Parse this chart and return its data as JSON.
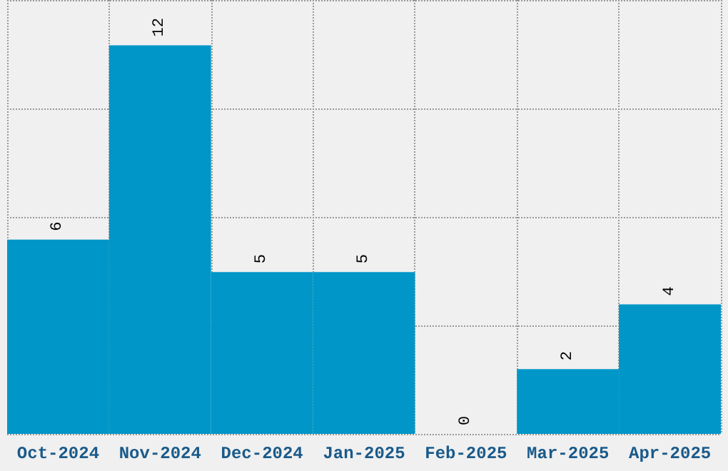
{
  "chart_data": {
    "type": "bar",
    "categories": [
      "Oct-2024",
      "Nov-2024",
      "Dec-2024",
      "Jan-2025",
      "Feb-2025",
      "Mar-2025",
      "Apr-2025"
    ],
    "values": [
      6,
      12,
      5,
      5,
      0,
      2,
      4
    ],
    "color": "#0096c8",
    "data_labels": true,
    "grid": true,
    "tick_labels": "x",
    "ylim": [
      0,
      13.4
    ],
    "yticks": [
      {
        "value": 0,
        "label": null
      },
      {
        "value": 3.35,
        "label": null
      },
      {
        "value": 6.7,
        "label": null
      },
      {
        "value": 10.05,
        "label": null
      },
      {
        "value": 13.4,
        "label": null
      }
    ]
  }
}
